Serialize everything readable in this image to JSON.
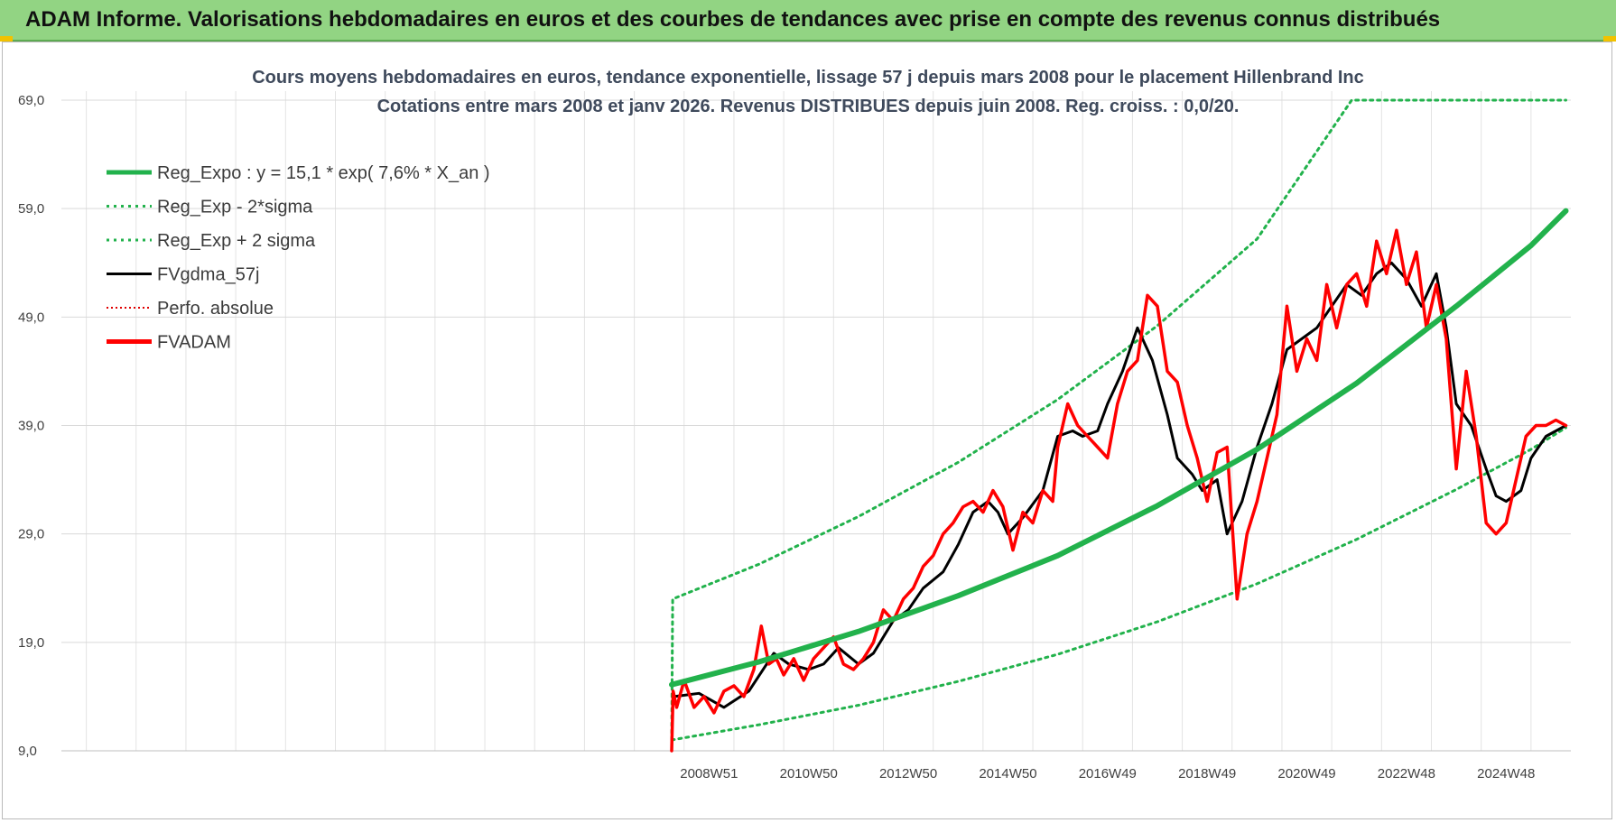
{
  "header": {
    "title": "ADAM Informe. Valorisations hebdomadaires en euros et des courbes de tendances avec prise en compte des revenus connus distribués"
  },
  "colors": {
    "banner": "#92d483",
    "regression": "#22b24c",
    "fv_ma": "#000000",
    "fvadam": "#ff0000",
    "perfo": "#e00000"
  },
  "chart_data": {
    "type": "line",
    "title": "Cours moyens hebdomadaires en euros, tendance exponentielle, lissage 57 j depuis mars 2008 pour le placement Hillenbrand Inc",
    "subtitle": "Cotations entre mars 2008 et janv 2026. Revenus DISTRIBUES depuis juin 2008. Reg. croiss. : 0,0/20.",
    "xlabel": "",
    "ylabel": "",
    "ylim": [
      9,
      69
    ],
    "yticks": [
      "69,0",
      "59,0",
      "49,0",
      "39,0",
      "29,0",
      "19,0",
      "9,0"
    ],
    "xticks": [
      "2008W51",
      "2010W50",
      "2012W50",
      "2014W50",
      "2016W49",
      "2018W49",
      "2020W49",
      "2022W48",
      "2024W48"
    ],
    "xticks_year": [
      2009,
      2011,
      2013,
      2015,
      2017,
      2019,
      2021,
      2023,
      2025
    ],
    "xlim": [
      1996.0,
      2026.3
    ],
    "grid": true,
    "legend_position": "top-left",
    "legend": [
      {
        "label": "Reg_Expo : y = 15,1 * exp( 7,6% *  X_an )",
        "style": "solid-thick",
        "color": "#22b24c"
      },
      {
        "label": "Reg_Exp - 2*sigma",
        "style": "dotted",
        "color": "#22b24c"
      },
      {
        "label": "Reg_Exp + 2 sigma",
        "style": "dotted",
        "color": "#22b24c"
      },
      {
        "label": "FVgdma_57j",
        "style": "solid",
        "color": "#000000"
      },
      {
        "label": "Perfo. absolue",
        "style": "dotted-thin",
        "color": "#e00000"
      },
      {
        "label": "FVADAM",
        "style": "solid-thick",
        "color": "#ff0000"
      }
    ],
    "series": [
      {
        "name": "Reg_Expo : y = 15,1 * exp( 7,6% *  X_an )",
        "x": [
          2008.25,
          2010.0,
          2012.0,
          2014.0,
          2016.0,
          2018.0,
          2020.0,
          2022.0,
          2024.0,
          2025.5,
          2026.2
        ],
        "values": [
          15.1,
          17.2,
          20.0,
          23.3,
          27.0,
          31.6,
          36.8,
          42.9,
          50.0,
          55.6,
          58.8
        ]
      },
      {
        "name": "Reg_Exp - 2*sigma",
        "x": [
          2008.25,
          2010.0,
          2012.0,
          2014.0,
          2016.0,
          2018.0,
          2020.0,
          2022.0,
          2024.0,
          2025.5,
          2026.2
        ],
        "values": [
          10.0,
          11.4,
          13.2,
          15.4,
          17.9,
          20.9,
          24.4,
          28.5,
          33.1,
          36.8,
          38.8
        ]
      },
      {
        "name": "Reg_Exp + 2 sigma",
        "x": [
          2008.25,
          2008.27,
          2010.0,
          2012.0,
          2014.0,
          2016.0,
          2018.0,
          2020.0,
          2021.9,
          2022.0,
          2024.0,
          2026.2
        ],
        "values": [
          10.0,
          23.0,
          26.2,
          30.6,
          35.6,
          41.4,
          48.2,
          56.2,
          69.0,
          69.0,
          69.0,
          69.0
        ]
      },
      {
        "name": "FVgdma_57j",
        "x": [
          2008.3,
          2008.8,
          2009.3,
          2009.8,
          2010.3,
          2010.6,
          2011.0,
          2011.3,
          2011.6,
          2012.0,
          2012.3,
          2012.7,
          2013.0,
          2013.3,
          2013.7,
          2014.0,
          2014.3,
          2014.6,
          2014.8,
          2015.0,
          2015.3,
          2015.7,
          2016.0,
          2016.3,
          2016.5,
          2016.8,
          2017.0,
          2017.3,
          2017.6,
          2017.9,
          2018.2,
          2018.4,
          2018.7,
          2018.9,
          2019.2,
          2019.4,
          2019.7,
          2020.0,
          2020.3,
          2020.6,
          2020.9,
          2021.2,
          2021.5,
          2021.8,
          2022.1,
          2022.4,
          2022.7,
          2023.0,
          2023.3,
          2023.6,
          2023.8,
          2024.0,
          2024.3,
          2024.6,
          2024.8,
          2025.0,
          2025.3,
          2025.5,
          2025.8,
          2026.2
        ],
        "values": [
          14.0,
          14.3,
          13.0,
          14.5,
          18.0,
          17.0,
          16.5,
          17.0,
          18.5,
          17.0,
          18.0,
          21.0,
          22.0,
          24.0,
          25.5,
          28.0,
          31.0,
          32.0,
          31.0,
          29.0,
          30.5,
          33.0,
          38.0,
          38.5,
          38.0,
          38.5,
          41.0,
          44.0,
          48.0,
          45.0,
          40.0,
          36.0,
          34.5,
          33.0,
          34.0,
          29.0,
          32.0,
          37.0,
          41.0,
          46.0,
          47.0,
          48.0,
          50.0,
          52.0,
          51.0,
          53.0,
          54.0,
          52.5,
          50.0,
          53.0,
          48.0,
          41.0,
          39.0,
          35.0,
          32.5,
          32.0,
          33.0,
          36.0,
          38.0,
          39.0
        ]
      },
      {
        "name": "FVADAM",
        "x": [
          2008.25,
          2008.28,
          2008.35,
          2008.5,
          2008.7,
          2008.9,
          2009.1,
          2009.3,
          2009.5,
          2009.7,
          2009.9,
          2010.05,
          2010.2,
          2010.35,
          2010.5,
          2010.7,
          2010.9,
          2011.1,
          2011.3,
          2011.5,
          2011.7,
          2011.9,
          2012.1,
          2012.3,
          2012.5,
          2012.7,
          2012.9,
          2013.1,
          2013.3,
          2013.5,
          2013.7,
          2013.9,
          2014.1,
          2014.3,
          2014.5,
          2014.7,
          2014.9,
          2015.1,
          2015.3,
          2015.5,
          2015.7,
          2015.9,
          2016.0,
          2016.2,
          2016.4,
          2016.6,
          2016.8,
          2017.0,
          2017.2,
          2017.4,
          2017.6,
          2017.8,
          2018.0,
          2018.2,
          2018.4,
          2018.6,
          2018.8,
          2019.0,
          2019.2,
          2019.4,
          2019.6,
          2019.8,
          2020.0,
          2020.2,
          2020.4,
          2020.6,
          2020.8,
          2021.0,
          2021.2,
          2021.4,
          2021.6,
          2021.8,
          2022.0,
          2022.2,
          2022.4,
          2022.6,
          2022.8,
          2023.0,
          2023.2,
          2023.4,
          2023.6,
          2023.8,
          2024.0,
          2024.2,
          2024.4,
          2024.6,
          2024.8,
          2025.0,
          2025.2,
          2025.4,
          2025.6,
          2025.8,
          2026.0,
          2026.2
        ],
        "values": [
          9.0,
          14.5,
          13.0,
          15.5,
          13.0,
          14.0,
          12.5,
          14.5,
          15.0,
          14.0,
          16.5,
          20.5,
          17.0,
          17.5,
          16.0,
          17.5,
          15.5,
          17.5,
          18.5,
          19.5,
          17.0,
          16.5,
          17.5,
          19.0,
          22.0,
          21.0,
          23.0,
          24.0,
          26.0,
          27.0,
          29.0,
          30.0,
          31.5,
          32.0,
          31.0,
          33.0,
          31.5,
          27.5,
          31.0,
          30.0,
          33.0,
          32.0,
          37.0,
          41.0,
          39.0,
          38.0,
          37.0,
          36.0,
          41.0,
          44.0,
          45.0,
          51.0,
          50.0,
          44.0,
          43.0,
          39.0,
          36.0,
          32.0,
          36.5,
          37.0,
          23.0,
          29.0,
          32.0,
          36.0,
          40.0,
          50.0,
          44.0,
          47.0,
          45.0,
          52.0,
          48.0,
          52.0,
          53.0,
          50.0,
          56.0,
          53.0,
          57.0,
          52.0,
          55.0,
          48.0,
          52.0,
          47.0,
          35.0,
          44.0,
          38.0,
          30.0,
          29.0,
          30.0,
          34.0,
          38.0,
          39.0,
          39.0,
          39.5,
          39.0
        ]
      }
    ]
  }
}
